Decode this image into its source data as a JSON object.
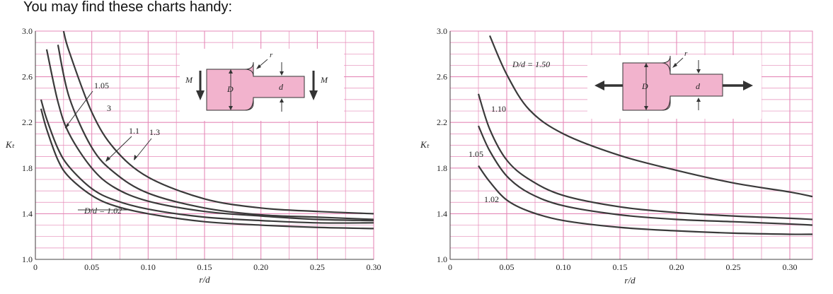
{
  "heading": "You may find these charts handy:",
  "colors": {
    "grid": "#e58ab8",
    "curve": "#3a3a3a",
    "part_fill": "#f2b3cd",
    "part_stroke": "#333333"
  },
  "chart_data": [
    {
      "type": "line",
      "xlabel": "r/d",
      "ylabel": "Kₜ",
      "xlim": [
        0,
        0.3
      ],
      "ylim": [
        1.0,
        3.0
      ],
      "x_ticks": [
        "0",
        "0.05",
        "0.10",
        "0.15",
        "0.20",
        "0.25",
        "0.30"
      ],
      "y_ticks": [
        "1.0",
        "1.4",
        "1.8",
        "2.2",
        "2.6",
        "3.0"
      ],
      "grid": true,
      "inset": {
        "labels": [
          "M",
          "M",
          "D",
          "d",
          "r"
        ],
        "loading": "bending"
      },
      "curve_labels": [
        "D/d = 1.02",
        "1.05",
        "1.1",
        "1.3",
        "3"
      ],
      "series": [
        {
          "name": "D/d = 1.02",
          "x": [
            0.005,
            0.01,
            0.02,
            0.03,
            0.05,
            0.07,
            0.1,
            0.15,
            0.2,
            0.25,
            0.3
          ],
          "y": [
            2.32,
            2.14,
            1.87,
            1.72,
            1.56,
            1.47,
            1.4,
            1.33,
            1.3,
            1.28,
            1.27
          ]
        },
        {
          "name": "1.05",
          "x": [
            0.005,
            0.01,
            0.02,
            0.03,
            0.05,
            0.07,
            0.1,
            0.15,
            0.2,
            0.25,
            0.3
          ],
          "y": [
            2.4,
            2.23,
            1.97,
            1.81,
            1.62,
            1.52,
            1.44,
            1.37,
            1.34,
            1.32,
            1.32
          ]
        },
        {
          "name": "1.1",
          "x": [
            0.01,
            0.02,
            0.03,
            0.05,
            0.07,
            0.1,
            0.15,
            0.2,
            0.25,
            0.3
          ],
          "y": [
            2.84,
            2.38,
            2.1,
            1.8,
            1.63,
            1.51,
            1.42,
            1.38,
            1.35,
            1.34
          ]
        },
        {
          "name": "1.3",
          "x": [
            0.02,
            0.03,
            0.05,
            0.07,
            0.1,
            0.15,
            0.2,
            0.25,
            0.3
          ],
          "y": [
            2.88,
            2.42,
            1.98,
            1.76,
            1.58,
            1.45,
            1.39,
            1.37,
            1.35
          ]
        },
        {
          "name": "3",
          "x": [
            0.025,
            0.03,
            0.05,
            0.07,
            0.1,
            0.15,
            0.2,
            0.25,
            0.3
          ],
          "y": [
            3.0,
            2.82,
            2.29,
            1.97,
            1.72,
            1.53,
            1.45,
            1.42,
            1.4
          ]
        }
      ]
    },
    {
      "type": "line",
      "xlabel": "r/d",
      "ylabel": "Kₜ",
      "xlim": [
        0,
        0.32
      ],
      "ylim": [
        1.0,
        3.0
      ],
      "x_ticks": [
        "0",
        "0.05",
        "0.10",
        "0.15",
        "0.20",
        "0.25",
        "0.30"
      ],
      "y_ticks": [
        "1.0",
        "1.4",
        "1.8",
        "2.2",
        "2.6",
        "3.0"
      ],
      "grid": true,
      "inset": {
        "labels": [
          "D",
          "d",
          "r"
        ],
        "loading": "axial"
      },
      "curve_labels": [
        "D/d = 1.50",
        "1.10",
        "1.05",
        "1.02"
      ],
      "series": [
        {
          "name": "D/d = 1.50",
          "x": [
            0.035,
            0.05,
            0.07,
            0.1,
            0.15,
            0.2,
            0.25,
            0.3,
            0.32
          ],
          "y": [
            2.96,
            2.62,
            2.31,
            2.1,
            1.91,
            1.78,
            1.67,
            1.59,
            1.55
          ]
        },
        {
          "name": "1.10",
          "x": [
            0.025,
            0.035,
            0.05,
            0.07,
            0.1,
            0.15,
            0.2,
            0.25,
            0.3,
            0.32
          ],
          "y": [
            2.45,
            2.14,
            1.87,
            1.7,
            1.56,
            1.46,
            1.41,
            1.38,
            1.36,
            1.35
          ]
        },
        {
          "name": "1.05",
          "x": [
            0.025,
            0.035,
            0.05,
            0.07,
            0.1,
            0.15,
            0.2,
            0.25,
            0.3,
            0.32
          ],
          "y": [
            2.17,
            1.95,
            1.73,
            1.58,
            1.47,
            1.39,
            1.35,
            1.33,
            1.31,
            1.3
          ]
        },
        {
          "name": "1.02",
          "x": [
            0.025,
            0.035,
            0.05,
            0.07,
            0.1,
            0.15,
            0.2,
            0.25,
            0.3,
            0.32
          ],
          "y": [
            1.82,
            1.68,
            1.52,
            1.42,
            1.34,
            1.28,
            1.25,
            1.23,
            1.22,
            1.22
          ]
        }
      ]
    }
  ]
}
